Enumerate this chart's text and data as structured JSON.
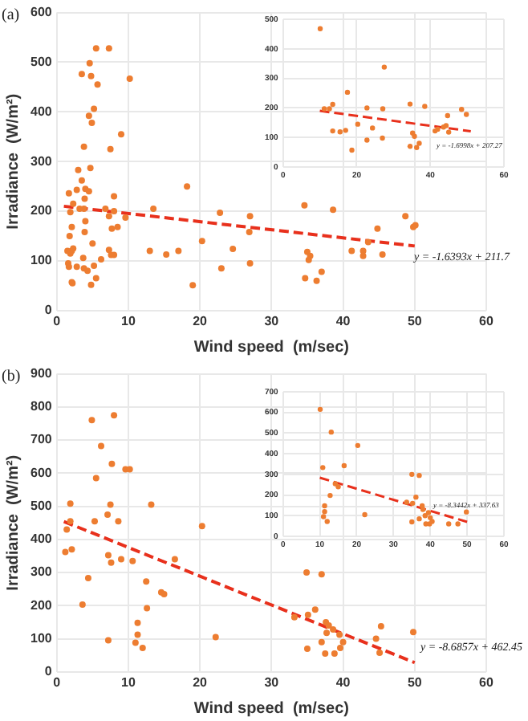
{
  "chart_data": [
    {
      "type": "scatter",
      "xlabel": "Wind speed  (m/sec)",
      "ylabel": "Irradiance  (W/m²)",
      "xlim": [
        0,
        60
      ],
      "xticks": [
        0,
        10,
        20,
        30,
        40,
        50,
        60
      ],
      "ylim": [
        0,
        600
      ],
      "yticks": [
        0,
        100,
        200,
        300,
        400,
        500,
        600
      ],
      "grid": true,
      "legend": false,
      "marker": "circle",
      "annotations": [
        "(a)",
        "y = -1.6393x + 211.7"
      ],
      "series": [
        {
          "color": "#ed7d31",
          "x": [
            7.3,
            5.5,
            4.6,
            3.5,
            4.8,
            10.2,
            5.7,
            5.2,
            4.5,
            4.9,
            9,
            3.8,
            7.5,
            4.7,
            3,
            3.5,
            4,
            2.8,
            4.5,
            1.7,
            3.9,
            8,
            3.2,
            2.3,
            3.8,
            6.8,
            8,
            7.3,
            9.6,
            1.9,
            4,
            7.7,
            8.5,
            2.1,
            3.9,
            1.8,
            2.3,
            2.1,
            1.5,
            1.9,
            7.3,
            8,
            7.6,
            3.7,
            6.2,
            1.6,
            5,
            2.8,
            3.8,
            1.7,
            4.3,
            5.2,
            5.5,
            2.1,
            2.2,
            4.8,
            18.2,
            13.5,
            22.8,
            27,
            26.9,
            20.3,
            24.6,
            13,
            15.3,
            17,
            23,
            27,
            19,
            34.6,
            38.6,
            35,
            35.4,
            35.2,
            37,
            34.7,
            36.3,
            41.2,
            42.8,
            42.8,
            43.5,
            44.8,
            45.5,
            48.7,
            49.8,
            50.1
          ],
          "values": [
            528,
            528,
            498,
            476,
            472,
            467,
            455,
            406,
            392,
            378,
            355,
            330,
            325,
            287,
            283,
            262,
            245,
            243,
            240,
            236,
            225,
            230,
            205,
            215,
            205,
            205,
            200,
            190,
            187,
            198,
            180,
            165,
            168,
            168,
            158,
            150,
            125,
            120,
            120,
            115,
            122,
            112,
            112,
            106,
            103,
            95,
            135,
            88,
            85,
            88,
            80,
            90,
            65,
            57,
            55,
            52,
            250,
            205,
            197,
            190,
            158,
            140,
            124,
            120,
            113,
            120,
            85,
            95,
            51,
            212,
            203,
            118,
            110,
            102,
            78,
            65,
            60,
            120,
            120,
            110,
            138,
            165,
            113,
            190,
            168,
            172
          ]
        },
        {
          "type": "line",
          "color": "#e8301c",
          "line_style": "dashed",
          "marker": "none",
          "x": [
            1,
            50
          ],
          "values": [
            210,
            130
          ]
        }
      ]
    },
    {
      "type": "scatter",
      "xlim": [
        0,
        60
      ],
      "xticks": [
        0,
        20,
        40,
        60
      ],
      "ylim": [
        0,
        500
      ],
      "yticks": [
        0,
        100,
        200,
        300,
        400,
        500
      ],
      "grid": true,
      "legend": false,
      "marker": "circle",
      "annotations": [
        "y = -1.6998x + 207.27"
      ],
      "series": [
        {
          "color": "#ed7d31",
          "x": [
            10.1,
            27.5,
            17.5,
            13.5,
            34.5,
            38.5,
            11.2,
            12.6,
            22.8,
            27.1,
            48.5,
            49.8,
            44.7,
            20.3,
            24.3,
            13.5,
            15.5,
            17,
            42,
            41.3,
            43.6,
            44.3,
            45,
            35.2,
            35.7,
            22.8,
            27,
            18.7,
            34.5,
            36.3,
            37
          ],
          "values": [
            468,
            338,
            253,
            212,
            213,
            205,
            197,
            197,
            200,
            197,
            195,
            178,
            174,
            145,
            132,
            122,
            119,
            124,
            128,
            122,
            135,
            140,
            118,
            115,
            104,
            91,
            98,
            57,
            70,
            66,
            80
          ]
        },
        {
          "type": "line",
          "color": "#e8301c",
          "line_style": "dashed",
          "marker": "none",
          "x": [
            10,
            51
          ],
          "values": [
            190,
            121
          ]
        }
      ]
    },
    {
      "type": "scatter",
      "xlabel": "Wind speed  (m/sec)",
      "ylabel": "Irradiance  (W/m²)",
      "xlim": [
        0,
        60
      ],
      "xticks": [
        0,
        10,
        20,
        30,
        40,
        50,
        60
      ],
      "ylim": [
        0,
        900
      ],
      "yticks": [
        0,
        100,
        200,
        300,
        400,
        500,
        600,
        700,
        800,
        900
      ],
      "grid": true,
      "legend": false,
      "marker": "circle",
      "annotations": [
        "(b)",
        "y = -8.6857x + 462.45"
      ],
      "series": [
        {
          "color": "#ed7d31",
          "x": [
            4.9,
            8,
            6.2,
            7.7,
            9.6,
            10.2,
            5.5,
            1.9,
            7.5,
            13.2,
            7.1,
            5.3,
            8.6,
            1.9,
            1.4,
            1.2,
            2.1,
            7.2,
            9,
            10.6,
            7.6,
            16.5,
            20.3,
            4.4,
            12.5,
            3.6,
            12.6,
            14.6,
            15,
            11.3,
            11.3,
            11,
            12,
            7.2,
            22.2,
            34.9,
            37,
            36.1,
            33.2,
            35.1,
            37.6,
            38,
            38.6,
            37.7,
            39.5,
            40,
            37,
            38.8,
            37.5,
            35,
            39.6,
            44.6,
            45.3,
            45.1,
            49.8
          ],
          "values": [
            760,
            775,
            682,
            628,
            612,
            612,
            585,
            508,
            505,
            505,
            475,
            455,
            455,
            455,
            430,
            362,
            370,
            352,
            340,
            335,
            330,
            340,
            440,
            283,
            273,
            203,
            192,
            240,
            235,
            148,
            112,
            88,
            72,
            95,
            105,
            300,
            295,
            188,
            165,
            172,
            150,
            140,
            128,
            118,
            112,
            90,
            90,
            55,
            55,
            70,
            72,
            100,
            138,
            58,
            120
          ]
        },
        {
          "type": "line",
          "color": "#e8301c",
          "line_style": "dashed",
          "marker": "none",
          "x": [
            1,
            50
          ],
          "values": [
            454,
            28
          ]
        }
      ]
    },
    {
      "type": "scatter",
      "xlim": [
        0,
        60
      ],
      "xticks": [
        0,
        10,
        20,
        30,
        40,
        50,
        60
      ],
      "ylim": [
        0,
        700
      ],
      "yticks": [
        0,
        100,
        200,
        300,
        400,
        500,
        600,
        700
      ],
      "grid": true,
      "legend": false,
      "marker": "circle",
      "annotations": [
        "y = -8.3442x + 337.63"
      ],
      "series": [
        {
          "color": "#ed7d31",
          "x": [
            10.1,
            13.1,
            20.3,
            16.6,
            10.8,
            35,
            37,
            14.2,
            15,
            12.8,
            36.1,
            22.2,
            11.3,
            11.3,
            11,
            12,
            33.6,
            35.2,
            37.8,
            38,
            39.5,
            38.6,
            40,
            37,
            35,
            38.8,
            39.8,
            45,
            47.5,
            49.8,
            40.5
          ],
          "values": [
            615,
            505,
            440,
            342,
            333,
            300,
            295,
            255,
            240,
            198,
            190,
            105,
            148,
            120,
            95,
            72,
            165,
            160,
            148,
            130,
            115,
            100,
            90,
            85,
            70,
            60,
            60,
            60,
            60,
            118,
            72
          ]
        },
        {
          "type": "line",
          "color": "#e8301c",
          "line_style": "dashed",
          "marker": "none",
          "x": [
            10,
            50
          ],
          "values": [
            284,
            70
          ]
        }
      ]
    }
  ]
}
